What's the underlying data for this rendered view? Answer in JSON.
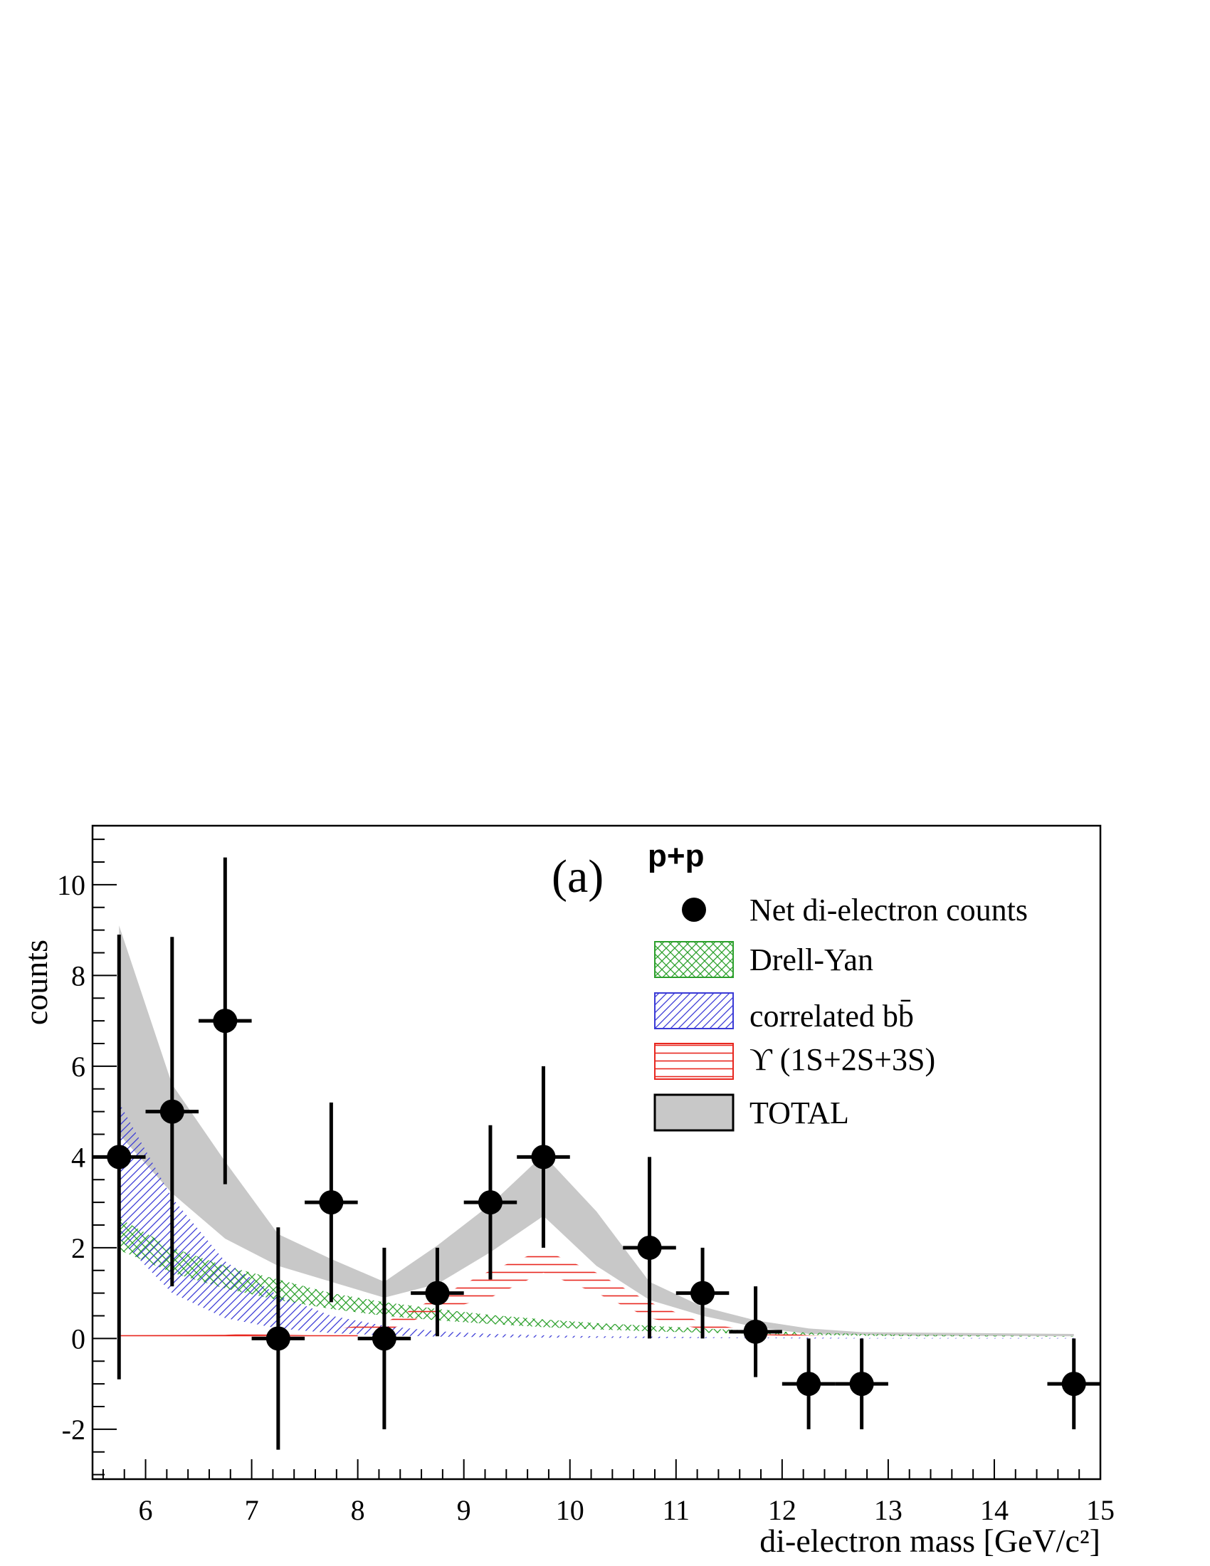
{
  "chart_data": {
    "type": "scatter",
    "panel_label": "(a)",
    "system_label": "p+p",
    "xlabel": "di-electron mass  [GeV/c²]",
    "ylabel": "counts",
    "xlim": [
      5.5,
      15
    ],
    "ylim": [
      -3.1,
      11.3
    ],
    "x_ticks": [
      6,
      7,
      8,
      9,
      10,
      11,
      12,
      13,
      14,
      15
    ],
    "y_ticks": [
      -2,
      0,
      2,
      4,
      6,
      8,
      10
    ],
    "grid": false,
    "legend_position": "top-right",
    "legend": [
      {
        "key": "data",
        "label": "Net di-electron counts"
      },
      {
        "key": "dy",
        "label": "Drell-Yan"
      },
      {
        "key": "bb",
        "label": "correlated bb̄"
      },
      {
        "key": "ups",
        "label": "ϒ (1S+2S+3S)"
      },
      {
        "key": "total",
        "label": "TOTAL"
      }
    ],
    "colors": {
      "data": "#000000",
      "drell_yan": "#2ca02c",
      "bbbar": "#3a3ad6",
      "upsilon": "#e8271f",
      "total": "#c8c8c8"
    },
    "series": [
      {
        "name": "Net di-electron counts",
        "x": [
          5.75,
          6.25,
          6.75,
          7.25,
          7.75,
          8.25,
          8.75,
          9.25,
          9.75,
          10.75,
          11.25,
          11.75,
          12.25,
          12.75,
          14.75
        ],
        "y": [
          4,
          5,
          7,
          0,
          3,
          0,
          1,
          3,
          4,
          2,
          1,
          0.15,
          -1,
          -1,
          -1
        ],
        "yerr_low": [
          4.9,
          3.85,
          3.6,
          2.45,
          2.2,
          2.0,
          0.95,
          1.7,
          2.0,
          2.0,
          1.0,
          1.0,
          1.0,
          1.0,
          1.0
        ],
        "yerr_high": [
          4.9,
          3.85,
          3.6,
          2.45,
          2.2,
          2.0,
          1.0,
          1.7,
          2.0,
          2.0,
          1.0,
          1.0,
          1.0,
          1.0,
          1.0
        ],
        "xerr": 0.25
      },
      {
        "name": "Drell-Yan",
        "x": [
          5.75,
          6.25,
          6.75,
          7.25,
          7.75,
          8.25,
          8.75,
          9.25,
          9.75,
          10.25,
          10.75,
          11.25,
          11.75,
          12.25,
          12.75,
          13.25,
          14.75
        ],
        "lower": [
          1.95,
          1.45,
          1.1,
          0.85,
          0.65,
          0.5,
          0.4,
          0.32,
          0.25,
          0.2,
          0.16,
          0.13,
          0.1,
          0.08,
          0.06,
          0.05,
          0.04
        ],
        "upper": [
          2.65,
          2.0,
          1.6,
          1.3,
          1.0,
          0.8,
          0.65,
          0.52,
          0.42,
          0.34,
          0.28,
          0.22,
          0.17,
          0.13,
          0.1,
          0.08,
          0.05
        ]
      },
      {
        "name": "correlated bb̄",
        "x": [
          5.75,
          6.25,
          6.75,
          7.25,
          7.75,
          8.25,
          8.75,
          9.25,
          9.75,
          10.25,
          10.75,
          11.25,
          11.75,
          12.25,
          12.75,
          13.25,
          14.75
        ],
        "lower": [
          2.2,
          1.0,
          0.45,
          0.22,
          0.12,
          0.07,
          0.04,
          0.03,
          0.02,
          0.015,
          0.01,
          0.01,
          0.01,
          0.0,
          0.0,
          0.0,
          0.0
        ],
        "upper": [
          5.2,
          3.1,
          1.7,
          0.95,
          0.5,
          0.28,
          0.16,
          0.1,
          0.07,
          0.05,
          0.04,
          0.03,
          0.02,
          0.02,
          0.01,
          0.01,
          0.01
        ]
      },
      {
        "name": "ϒ (1S+2S+3S)",
        "x": [
          5.75,
          6.75,
          7.75,
          8.25,
          8.75,
          9.25,
          9.75,
          10.25,
          10.75,
          11.25,
          11.75,
          12.25,
          12.75,
          14.75
        ],
        "lower": [
          0.05,
          0.06,
          0.1,
          0.15,
          0.6,
          0.9,
          1.45,
          1.0,
          0.45,
          0.2,
          0.08,
          0.04,
          0.02,
          0.01
        ],
        "upper": [
          0.07,
          0.08,
          0.2,
          0.35,
          0.9,
          1.5,
          1.95,
          1.45,
          0.8,
          0.35,
          0.15,
          0.07,
          0.04,
          0.02
        ]
      },
      {
        "name": "TOTAL",
        "x": [
          5.75,
          6.25,
          6.75,
          7.25,
          7.75,
          8.25,
          8.75,
          9.25,
          9.75,
          10.25,
          10.75,
          11.25,
          11.75,
          12.25,
          12.75,
          13.25,
          14.75
        ],
        "lower": [
          4.5,
          3.2,
          2.2,
          1.6,
          1.25,
          0.9,
          1.2,
          1.9,
          2.7,
          1.6,
          0.85,
          0.5,
          0.25,
          0.1,
          0.08,
          0.06,
          0.05
        ],
        "upper": [
          9.1,
          5.6,
          3.9,
          2.3,
          1.75,
          1.25,
          2.05,
          2.95,
          4.05,
          2.8,
          1.25,
          0.7,
          0.4,
          0.22,
          0.14,
          0.13,
          0.1
        ]
      }
    ]
  }
}
